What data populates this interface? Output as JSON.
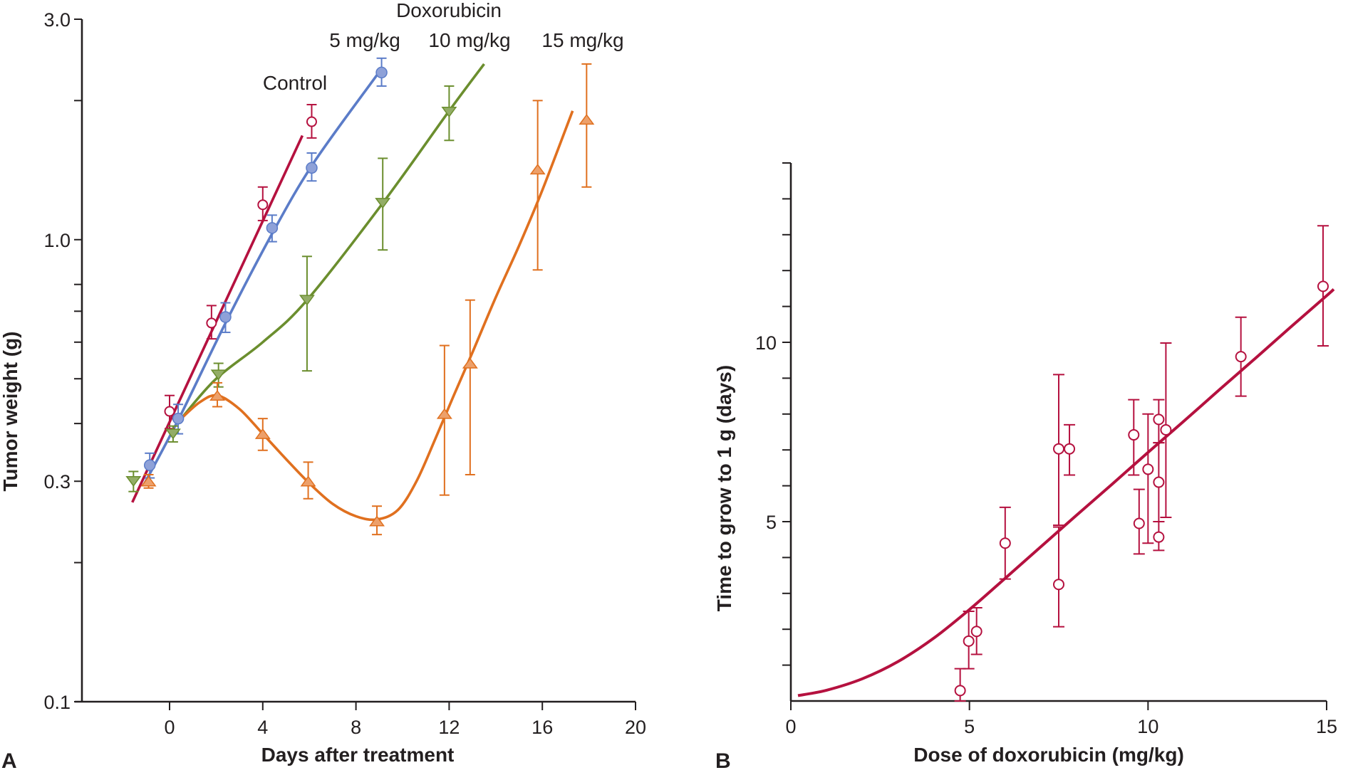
{
  "chart_data": [
    {
      "panel": "A",
      "type": "line",
      "xlabel": "Days after treatment",
      "ylabel": "Tumor weight (g)",
      "yscale": "log",
      "xlim": [
        -3.7,
        20
      ],
      "ylim": [
        0.1,
        3.0
      ],
      "xticks": [
        0,
        4,
        8,
        12,
        16,
        20
      ],
      "yticks_labeled": [
        {
          "value": 0.1,
          "label": "0.1"
        },
        {
          "value": 0.3,
          "label": "0.3"
        },
        {
          "value": 1.0,
          "label": "1.0"
        },
        {
          "value": 3.0,
          "label": "3.0"
        }
      ],
      "yticks_minor": [
        0.2,
        0.4,
        0.5,
        0.6,
        0.7,
        0.8,
        2.0
      ],
      "grid": false,
      "annotations": {
        "group_title": "Doxorubicin",
        "control": "Control",
        "dose5": "5 mg/kg",
        "dose10": "10 mg/kg",
        "dose15": "15 mg/kg"
      },
      "series": [
        {
          "name": "Control",
          "color": "#b5113f",
          "marker": "open-circle",
          "points": [
            {
              "x": 0.0,
              "y": 0.425,
              "lo": 0.39,
              "hi": 0.46
            },
            {
              "x": 1.8,
              "y": 0.66,
              "lo": 0.61,
              "hi": 0.72
            },
            {
              "x": 4.0,
              "y": 1.19,
              "lo": 1.1,
              "hi": 1.3
            },
            {
              "x": 6.1,
              "y": 1.8,
              "lo": 1.66,
              "hi": 1.96
            }
          ],
          "fit": [
            [
              -1.6,
              0.27
            ],
            [
              5.7,
              1.68
            ]
          ]
        },
        {
          "name": "5 mg/kg",
          "color": "#5b7cc8",
          "fill": "#8ea1d8",
          "marker": "filled-circle",
          "points": [
            {
              "x": -0.85,
              "y": 0.325,
              "lo": 0.305,
              "hi": 0.345
            },
            {
              "x": 0.37,
              "y": 0.41,
              "lo": 0.38,
              "hi": 0.44
            },
            {
              "x": 2.4,
              "y": 0.68,
              "lo": 0.63,
              "hi": 0.73
            },
            {
              "x": 4.4,
              "y": 1.06,
              "lo": 0.99,
              "hi": 1.13
            },
            {
              "x": 6.1,
              "y": 1.43,
              "lo": 1.34,
              "hi": 1.54
            },
            {
              "x": 9.1,
              "y": 2.3,
              "lo": 2.15,
              "hi": 2.47
            }
          ],
          "fit": [
            [
              -1.1,
              0.295
            ],
            [
              0.4,
              0.41
            ],
            [
              2.4,
              0.66
            ],
            [
              4.4,
              1.03
            ],
            [
              6.2,
              1.47
            ],
            [
              8.9,
              2.27
            ]
          ]
        },
        {
          "name": "10 mg/kg",
          "color": "#6b8e2e",
          "fill": "#93ad66",
          "marker": "down-triangle",
          "points": [
            {
              "x": -1.55,
              "y": 0.3,
              "lo": 0.285,
              "hi": 0.315
            },
            {
              "x": 0.15,
              "y": 0.38,
              "lo": 0.365,
              "hi": 0.395
            },
            {
              "x": 2.1,
              "y": 0.51,
              "lo": 0.48,
              "hi": 0.54
            },
            {
              "x": 5.9,
              "y": 0.74,
              "lo": 0.52,
              "hi": 0.92
            },
            {
              "x": 9.15,
              "y": 1.2,
              "lo": 0.95,
              "hi": 1.5
            },
            {
              "x": 12.0,
              "y": 1.89,
              "lo": 1.64,
              "hi": 2.15
            }
          ],
          "fit": [
            [
              0.5,
              0.41
            ],
            [
              2.0,
              0.5
            ],
            [
              4.0,
              0.6
            ],
            [
              5.9,
              0.74
            ],
            [
              9.15,
              1.2
            ],
            [
              12.0,
              1.9
            ],
            [
              13.5,
              2.4
            ]
          ]
        },
        {
          "name": "15 mg/kg",
          "color": "#e0701f",
          "fill": "#eda06a",
          "marker": "up-triangle",
          "points": [
            {
              "x": -0.9,
              "y": 0.3,
              "lo": 0.29,
              "hi": 0.31
            },
            {
              "x": 2.05,
              "y": 0.46,
              "lo": 0.435,
              "hi": 0.49
            },
            {
              "x": 4.0,
              "y": 0.38,
              "lo": 0.35,
              "hi": 0.41
            },
            {
              "x": 5.95,
              "y": 0.3,
              "lo": 0.275,
              "hi": 0.33
            },
            {
              "x": 8.9,
              "y": 0.246,
              "lo": 0.23,
              "hi": 0.265
            },
            {
              "x": 11.8,
              "y": 0.42,
              "lo": 0.28,
              "hi": 0.59
            },
            {
              "x": 12.9,
              "y": 0.54,
              "lo": 0.31,
              "hi": 0.74
            },
            {
              "x": 15.8,
              "y": 1.42,
              "lo": 0.86,
              "hi": 2.0
            },
            {
              "x": 17.9,
              "y": 1.82,
              "lo": 1.3,
              "hi": 2.4
            }
          ],
          "fit": [
            [
              0.5,
              0.41
            ],
            [
              1.3,
              0.445
            ],
            [
              2.05,
              0.46
            ],
            [
              3.0,
              0.43
            ],
            [
              4.0,
              0.38
            ],
            [
              5.0,
              0.335
            ],
            [
              6.0,
              0.297
            ],
            [
              7.0,
              0.268
            ],
            [
              8.0,
              0.252
            ],
            [
              8.9,
              0.248
            ],
            [
              9.8,
              0.26
            ],
            [
              10.6,
              0.3
            ],
            [
              11.4,
              0.37
            ],
            [
              12.2,
              0.46
            ],
            [
              13.0,
              0.57
            ],
            [
              14.0,
              0.75
            ],
            [
              15.0,
              0.97
            ],
            [
              16.0,
              1.28
            ],
            [
              17.3,
              1.9
            ]
          ]
        }
      ]
    },
    {
      "panel": "B",
      "type": "scatter",
      "xlabel": "Dose of doxorubicin (mg/kg)",
      "ylabel": "Time to grow to 1 g (days)",
      "xlim": [
        0,
        15
      ],
      "ylim": [
        0,
        15
      ],
      "xticks": [
        0,
        5,
        10,
        15
      ],
      "yticks_labeled": [
        {
          "value": 5,
          "label": "5"
        },
        {
          "value": 10,
          "label": "10"
        }
      ],
      "yticks_minor": [
        1,
        2,
        3,
        4,
        6,
        7,
        8,
        9,
        11,
        12,
        13,
        14,
        15
      ],
      "grid": false,
      "color": "#b5113f",
      "marker": "open-circle",
      "points": [
        {
          "x": 4.74,
          "y": 0.29,
          "lo": 0.0,
          "hi": 0.9
        },
        {
          "x": 4.98,
          "y": 1.67,
          "lo": 0.9,
          "hi": 2.5
        },
        {
          "x": 5.2,
          "y": 1.94,
          "lo": 1.3,
          "hi": 2.6
        },
        {
          "x": 6.0,
          "y": 4.4,
          "lo": 3.4,
          "hi": 5.4
        },
        {
          "x": 7.5,
          "y": 3.25,
          "lo": 2.07,
          "hi": 4.85
        },
        {
          "x": 7.5,
          "y": 7.03,
          "lo": 4.9,
          "hi": 9.1
        },
        {
          "x": 7.8,
          "y": 7.03,
          "lo": 6.3,
          "hi": 7.7
        },
        {
          "x": 9.6,
          "y": 7.42,
          "lo": 6.3,
          "hi": 8.4
        },
        {
          "x": 9.75,
          "y": 4.95,
          "lo": 4.1,
          "hi": 5.9
        },
        {
          "x": 10.0,
          "y": 6.46,
          "lo": 4.4,
          "hi": 8.0
        },
        {
          "x": 10.3,
          "y": 7.85,
          "lo": 7.2,
          "hi": 8.4
        },
        {
          "x": 10.3,
          "y": 6.1,
          "lo": 5.0,
          "hi": 7.2
        },
        {
          "x": 10.3,
          "y": 4.57,
          "lo": 4.2,
          "hi": 5.0
        },
        {
          "x": 10.5,
          "y": 7.56,
          "lo": 5.12,
          "hi": 9.98
        },
        {
          "x": 12.6,
          "y": 9.6,
          "lo": 8.5,
          "hi": 10.7
        },
        {
          "x": 14.9,
          "y": 11.56,
          "lo": 9.9,
          "hi": 13.25
        }
      ],
      "fit": [
        [
          0.2,
          0.15
        ],
        [
          1.0,
          0.3
        ],
        [
          2.0,
          0.62
        ],
        [
          3.0,
          1.1
        ],
        [
          4.0,
          1.75
        ],
        [
          5.0,
          2.55
        ],
        [
          6.0,
          3.42
        ],
        [
          7.0,
          4.3
        ],
        [
          8.0,
          5.18
        ],
        [
          9.0,
          6.05
        ],
        [
          10.0,
          6.93
        ],
        [
          11.0,
          7.8
        ],
        [
          12.0,
          8.68
        ],
        [
          13.0,
          9.55
        ],
        [
          14.0,
          10.43
        ],
        [
          15.0,
          11.3
        ],
        [
          15.2,
          11.48
        ]
      ]
    }
  ],
  "figure": {
    "panel_a_label": "A",
    "panel_b_label": "B"
  }
}
